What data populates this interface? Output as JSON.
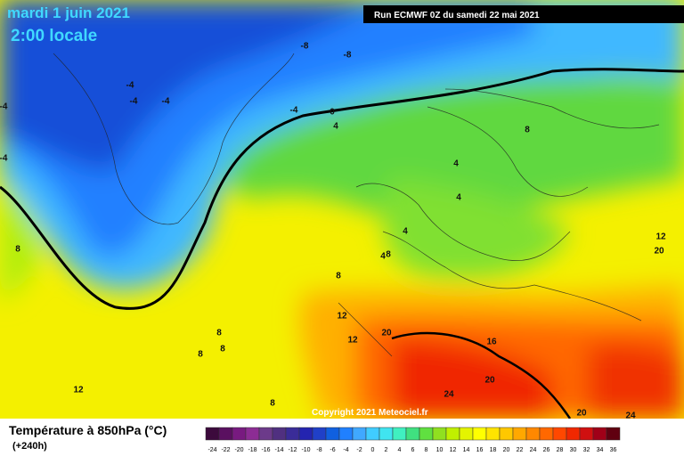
{
  "header": {
    "date": "mardi 1 juin 2021",
    "time": "2:00 locale",
    "run": "Run ECMWF 0Z du samedi 22 mai 2021"
  },
  "copyright": "Copyright 2021 Meteociel.fr",
  "footer": {
    "title": "Température à 850hPa (°C)",
    "lead": "(+240h)"
  },
  "map": {
    "contour_labels": [
      -8,
      -8,
      -4,
      -4,
      -4,
      -4,
      -4,
      -4,
      0,
      4,
      4,
      4,
      8,
      4,
      4,
      8,
      8,
      12,
      12,
      8,
      8,
      8,
      8,
      12,
      20,
      16,
      20,
      24,
      20,
      20,
      24,
      12,
      8
    ]
  },
  "legend": {
    "ticks": [
      -24,
      -22,
      -20,
      -18,
      -16,
      -14,
      -12,
      -10,
      -8,
      -6,
      -4,
      -2,
      0,
      2,
      4,
      6,
      8,
      10,
      12,
      14,
      16,
      18,
      20,
      22,
      24,
      26,
      28,
      30,
      32,
      34,
      36
    ],
    "colors": [
      "#3c0a3c",
      "#5a1060",
      "#781a80",
      "#8c2c94",
      "#6c3a8a",
      "#503080",
      "#3a2c98",
      "#2424b0",
      "#2040c8",
      "#1060e0",
      "#2080ff",
      "#40a8ff",
      "#40ccff",
      "#40e4f0",
      "#40f0c0",
      "#40e080",
      "#60e040",
      "#90e020",
      "#c0f000",
      "#e4f400",
      "#ffff00",
      "#ffe400",
      "#ffc800",
      "#ffa800",
      "#ff8800",
      "#ff6800",
      "#ff4800",
      "#f02800",
      "#d01010",
      "#a00018",
      "#600010"
    ]
  }
}
